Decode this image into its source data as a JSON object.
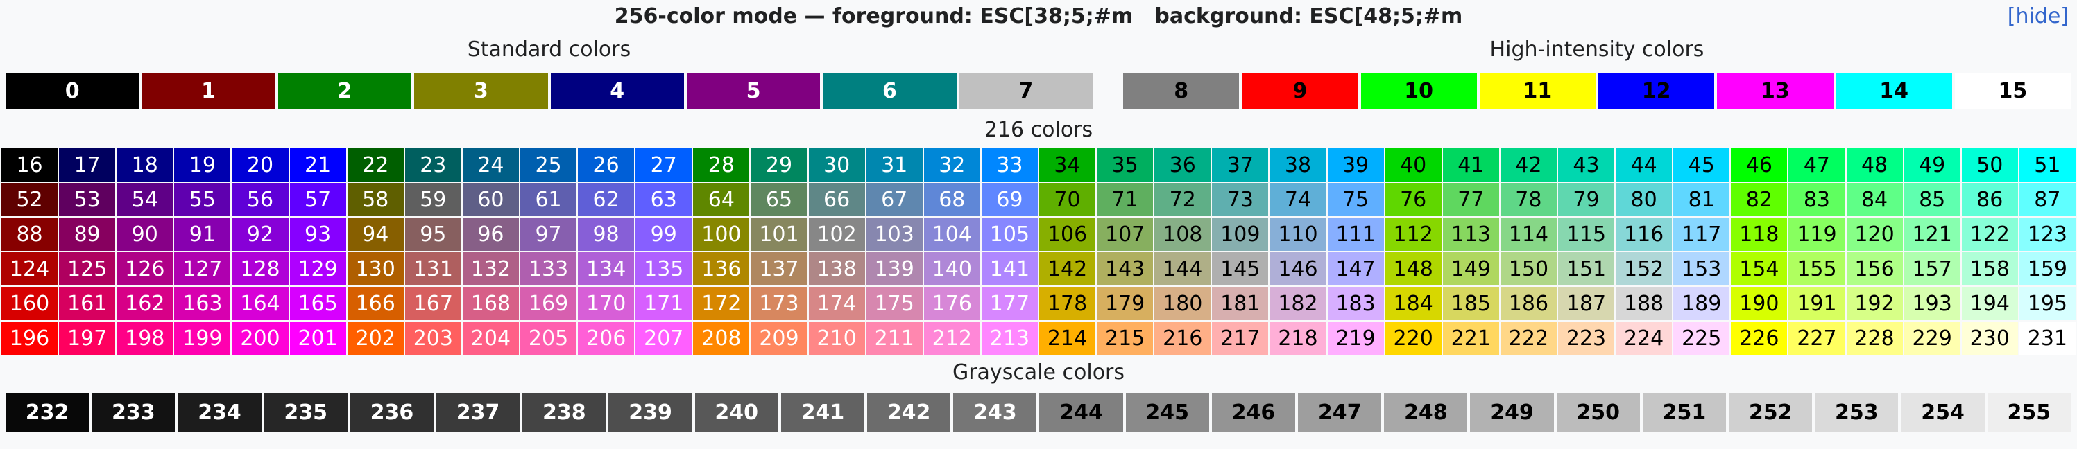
{
  "header": {
    "title": "256-color mode — foreground: ESC[38;5;#m   background: ESC[48;5;#m",
    "toggle": "[hide]"
  },
  "standard": {
    "label": "Standard colors",
    "cells": [
      0,
      1,
      2,
      3,
      4,
      5,
      6,
      7
    ]
  },
  "high": {
    "label": "High-intensity colors",
    "cells": [
      8,
      9,
      10,
      11,
      12,
      13,
      14,
      15
    ]
  },
  "cube": {
    "label": "216 colors",
    "rows": [
      [
        16,
        17,
        18,
        19,
        20,
        21,
        22,
        23,
        24,
        25,
        26,
        27,
        28,
        29,
        30,
        31,
        32,
        33,
        34,
        35,
        36,
        37,
        38,
        39,
        40,
        41,
        42,
        43,
        44,
        45,
        46,
        47,
        48,
        49,
        50,
        51
      ],
      [
        52,
        53,
        54,
        55,
        56,
        57,
        58,
        59,
        60,
        61,
        62,
        63,
        64,
        65,
        66,
        67,
        68,
        69,
        70,
        71,
        72,
        73,
        74,
        75,
        76,
        77,
        78,
        79,
        80,
        81,
        82,
        83,
        84,
        85,
        86,
        87
      ],
      [
        88,
        89,
        90,
        91,
        92,
        93,
        94,
        95,
        96,
        97,
        98,
        99,
        100,
        101,
        102,
        103,
        104,
        105,
        106,
        107,
        108,
        109,
        110,
        111,
        112,
        113,
        114,
        115,
        116,
        117,
        118,
        119,
        120,
        121,
        122,
        123
      ],
      [
        124,
        125,
        126,
        127,
        128,
        129,
        130,
        131,
        132,
        133,
        134,
        135,
        136,
        137,
        138,
        139,
        140,
        141,
        142,
        143,
        144,
        145,
        146,
        147,
        148,
        149,
        150,
        151,
        152,
        153,
        154,
        155,
        156,
        157,
        158,
        159
      ],
      [
        160,
        161,
        162,
        163,
        164,
        165,
        166,
        167,
        168,
        169,
        170,
        171,
        172,
        173,
        174,
        175,
        176,
        177,
        178,
        179,
        180,
        181,
        182,
        183,
        184,
        185,
        186,
        187,
        188,
        189,
        190,
        191,
        192,
        193,
        194,
        195
      ],
      [
        196,
        197,
        198,
        199,
        200,
        201,
        202,
        203,
        204,
        205,
        206,
        207,
        208,
        209,
        210,
        211,
        212,
        213,
        214,
        215,
        216,
        217,
        218,
        219,
        220,
        221,
        222,
        223,
        224,
        225,
        226,
        227,
        228,
        229,
        230,
        231
      ]
    ]
  },
  "grayscale": {
    "label": "Grayscale colors",
    "cells": [
      232,
      233,
      234,
      235,
      236,
      237,
      238,
      239,
      240,
      241,
      242,
      243,
      244,
      245,
      246,
      247,
      248,
      249,
      250,
      251,
      252,
      253,
      254,
      255
    ]
  }
}
